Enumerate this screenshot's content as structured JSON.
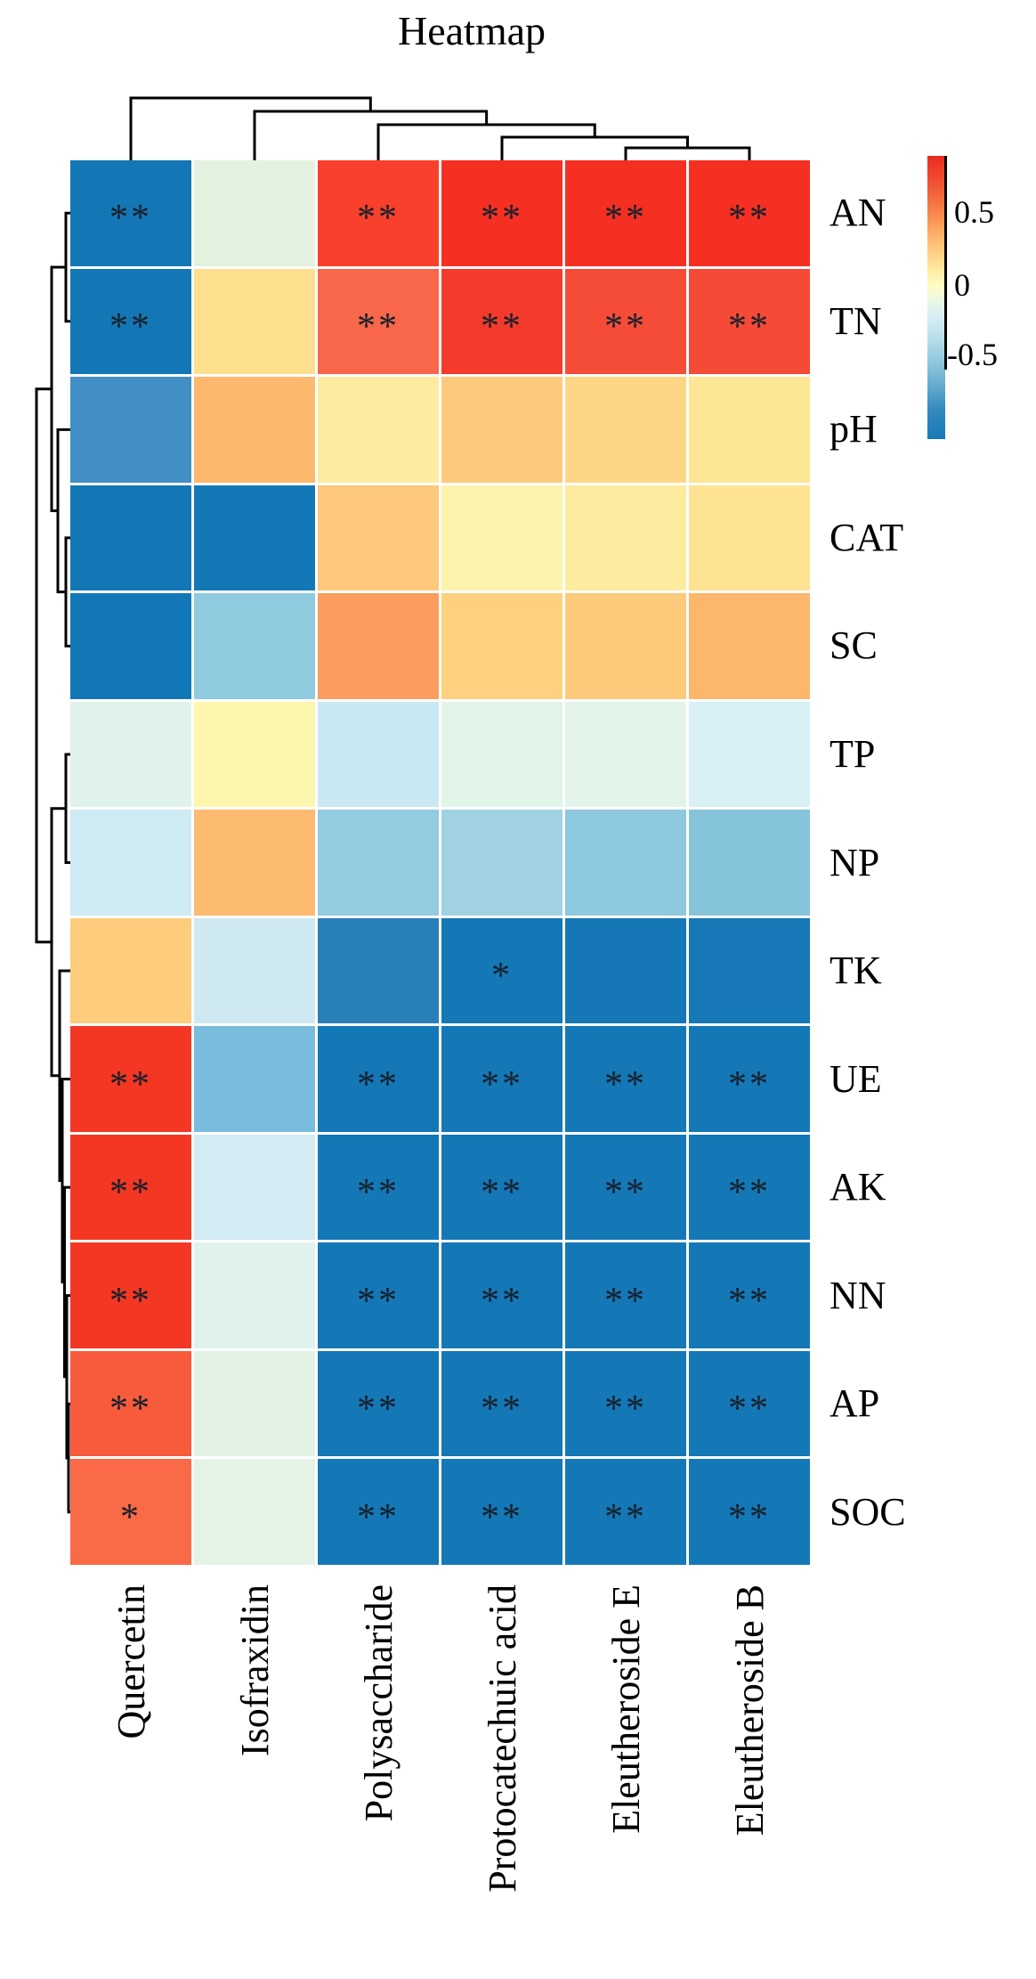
{
  "title": "Heatmap",
  "legend": {
    "labels": {
      "high": "0.5",
      "zero": "0",
      "low": "-0.5"
    }
  },
  "colors": {
    "max_red": "#F43723",
    "min_blue": "#1478B7",
    "zero_cream": "#FEFDC2",
    "background": "#FFFFFF",
    "dendrogram_line": "#000000",
    "star_color": "#17202b"
  },
  "chart_data": {
    "type": "heatmap",
    "title": "Heatmap",
    "columns": [
      "Quercetin",
      "Isofraxidin",
      "Polysaccharide",
      "Protocatechuic acid",
      "Eleutheroside E",
      "Eleutheroside B"
    ],
    "rows": [
      "AN",
      "TN",
      "pH",
      "CAT",
      "SC",
      "TP",
      "NP",
      "TK",
      "UE",
      "AK",
      "NN",
      "AP",
      "SOC"
    ],
    "estimated_values": [
      [
        -0.75,
        0.05,
        0.72,
        0.78,
        0.78,
        0.78
      ],
      [
        -0.75,
        0.25,
        0.62,
        0.74,
        0.7,
        0.7
      ],
      [
        -0.55,
        0.42,
        0.18,
        0.33,
        0.3,
        0.23
      ],
      [
        -0.75,
        -0.75,
        0.34,
        0.13,
        0.18,
        0.23
      ],
      [
        -0.75,
        -0.3,
        0.5,
        0.29,
        0.33,
        0.41
      ],
      [
        0.04,
        0.12,
        -0.15,
        0.04,
        0.04,
        -0.1
      ],
      [
        -0.13,
        0.4,
        -0.3,
        -0.26,
        -0.31,
        -0.34
      ],
      [
        0.33,
        -0.13,
        -0.65,
        -0.75,
        -0.75,
        -0.75
      ],
      [
        0.75,
        -0.38,
        -0.75,
        -0.75,
        -0.75,
        -0.75
      ],
      [
        0.75,
        -0.12,
        -0.75,
        -0.75,
        -0.75,
        -0.75
      ],
      [
        0.75,
        0.02,
        -0.75,
        -0.75,
        -0.75,
        -0.75
      ],
      [
        0.65,
        0.03,
        -0.75,
        -0.75,
        -0.75,
        -0.75
      ],
      [
        0.6,
        0.03,
        -0.75,
        -0.75,
        -0.75,
        -0.75
      ]
    ],
    "cell_colors": [
      [
        "#1377B6",
        "#E3F2DE",
        "#F8402C",
        "#F53023",
        "#F53023",
        "#F53023"
      ],
      [
        "#1377B6",
        "#FDDF8E",
        "#F8674A",
        "#F33A2B",
        "#F54C38",
        "#F54A36"
      ],
      [
        "#428FC6",
        "#FCB96E",
        "#FDEC9F",
        "#FDCA7D",
        "#FDD685",
        "#FDE695"
      ],
      [
        "#1578B6",
        "#1578B6",
        "#FDC77C",
        "#FEF3AC",
        "#FDECA0",
        "#FDE392"
      ],
      [
        "#1277B7",
        "#90CBE0",
        "#FC9C5F",
        "#FDD180",
        "#FDC97B",
        "#FCB76D"
      ],
      [
        "#E0F3EA",
        "#FDF7AE",
        "#C9E8F2",
        "#E1F4E8",
        "#E2F4EA",
        "#D8F0F4"
      ],
      [
        "#CEEAF3",
        "#FDBA71",
        "#93CBE1",
        "#A0D2E4",
        "#8FC9DF",
        "#86C4DC"
      ],
      [
        "#FDCC7D",
        "#CFE9F2",
        "#2980B9",
        "#1478B7",
        "#1577B6",
        "#1678B7"
      ],
      [
        "#F43723",
        "#79BCDB",
        "#1478B7",
        "#1478B7",
        "#1478B7",
        "#1478B7"
      ],
      [
        "#F43723",
        "#D3EBF2",
        "#1478B7",
        "#1478B7",
        "#1478B7",
        "#1478B7"
      ],
      [
        "#F43723",
        "#DFF2EE",
        "#1478B7",
        "#1478B7",
        "#1478B7",
        "#1478B7"
      ],
      [
        "#F75B3B",
        "#E2F3E3",
        "#1478B7",
        "#1478B7",
        "#1478B7",
        "#1478B7"
      ],
      [
        "#FA6A47",
        "#E4F3E6",
        "#1478B7",
        "#1478B7",
        "#1478B7",
        "#1478B7"
      ]
    ],
    "significance": [
      [
        "**",
        "",
        "**",
        "**",
        "**",
        "**"
      ],
      [
        "**",
        "",
        "**",
        "**",
        "**",
        "**"
      ],
      [
        "",
        "",
        "",
        "",
        "",
        ""
      ],
      [
        "",
        "",
        "",
        "",
        "",
        ""
      ],
      [
        "",
        "",
        "",
        "",
        "",
        ""
      ],
      [
        "",
        "",
        "",
        "",
        "",
        ""
      ],
      [
        "",
        "",
        "",
        "",
        "",
        ""
      ],
      [
        "",
        "",
        "",
        "*",
        "",
        ""
      ],
      [
        "**",
        "",
        "**",
        "**",
        "**",
        "**"
      ],
      [
        "**",
        "",
        "**",
        "**",
        "**",
        "**"
      ],
      [
        "**",
        "",
        "**",
        "**",
        "**",
        "**"
      ],
      [
        "**",
        "",
        "**",
        "**",
        "**",
        "**"
      ],
      [
        "*",
        "",
        "**",
        "**",
        "**",
        "**"
      ]
    ],
    "colorbar": {
      "tick_labels": [
        "0.5",
        "0",
        "-0.5"
      ],
      "max_color": "#EA2A20",
      "zero_color": "#FEFDC2",
      "min_color": "#1879B7"
    },
    "col_dendrogram": "(Quercetin,(Isofraxidin,(Polysaccharide,(Protocatechuic acid,(Eleutheroside E,Eleutheroside B)))))",
    "row_dendrogram": "(((AN,TN),(pH,(CAT,SC))),((TP,NP),(TK,(UE,(AK,(NN,(AP,SOC)))))))",
    "legend_position": "right",
    "grid": "white gaps between cells"
  }
}
